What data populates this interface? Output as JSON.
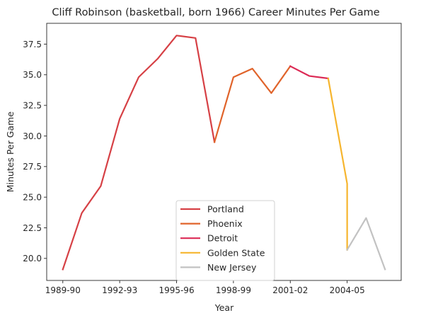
{
  "chart_data": {
    "type": "line",
    "title": "Cliff Robinson (basketball, born 1966) Career Minutes Per Game",
    "xlabel": "Year",
    "ylabel": "Minutes Per Game",
    "x_tick_labels": [
      "1989-90",
      "1992-93",
      "1995-96",
      "1998-99",
      "2001-02",
      "2004-05"
    ],
    "y_ticks": [
      20.0,
      22.5,
      25.0,
      27.5,
      30.0,
      32.5,
      35.0,
      37.5
    ],
    "y_tick_labels": [
      "20.0",
      "22.5",
      "25.0",
      "27.5",
      "30.0",
      "32.5",
      "35.0",
      "37.5"
    ],
    "xlim": [
      "1989-90",
      "2006-07"
    ],
    "ylim": [
      18.2,
      39.2
    ],
    "grid": false,
    "legend_position": "bottom-center",
    "seasons": [
      "1989-90",
      "1990-91",
      "1991-92",
      "1992-93",
      "1993-94",
      "1994-95",
      "1995-96",
      "1996-97",
      "1997-98",
      "1998-99",
      "1999-00",
      "2000-01",
      "2001-02",
      "2002-03",
      "2003-04",
      "2004-05",
      "2005-06",
      "2006-07"
    ],
    "series": [
      {
        "name": "Portland",
        "color": "#d64045",
        "x": [
          "1989-90",
          "1990-91",
          "1991-92",
          "1992-93",
          "1993-94",
          "1994-95",
          "1995-96",
          "1996-97",
          "1997-98"
        ],
        "values": [
          19.1,
          23.7,
          25.9,
          31.4,
          34.8,
          36.3,
          38.2,
          38.0,
          29.5
        ]
      },
      {
        "name": "Phoenix",
        "color": "#e0632a",
        "x": [
          "1997-98",
          "1998-99",
          "1999-00",
          "2000-01",
          "2001-02"
        ],
        "values": [
          29.5,
          34.8,
          35.5,
          33.5,
          35.7
        ]
      },
      {
        "name": "Detroit",
        "color": "#dc2a55",
        "x": [
          "2001-02",
          "2002-03",
          "2003-04"
        ],
        "values": [
          35.7,
          34.9,
          34.7
        ]
      },
      {
        "name": "Golden State",
        "color": "#f6b52e",
        "x": [
          "2003-04",
          "2004-05",
          "2004-05"
        ],
        "values": [
          34.7,
          26.1,
          20.7
        ]
      },
      {
        "name": "New Jersey",
        "color": "#c2c2c2",
        "x": [
          "2004-05",
          "2005-06",
          "2006-07"
        ],
        "values": [
          20.7,
          23.3,
          19.1
        ]
      }
    ]
  }
}
